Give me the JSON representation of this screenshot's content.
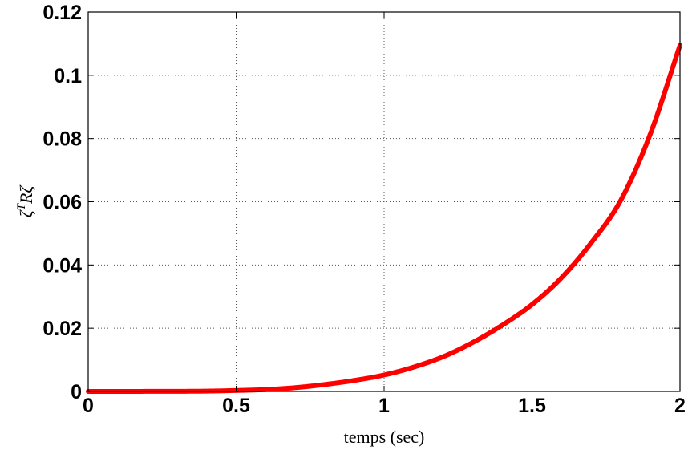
{
  "chart_data": {
    "type": "line",
    "title": "",
    "xlabel": "temps (sec)",
    "ylabel": {
      "base": "ζ",
      "superscript": "T",
      "rest": "Rζ"
    },
    "xlim": [
      0,
      2
    ],
    "ylim": [
      0,
      0.12
    ],
    "xticks": [
      0,
      0.5,
      1,
      1.5,
      2
    ],
    "xtick_labels": [
      "0",
      "0.5",
      "1",
      "1.5",
      "2"
    ],
    "yticks": [
      0,
      0.02,
      0.04,
      0.06,
      0.08,
      0.1,
      0.12
    ],
    "ytick_labels": [
      "0",
      "0.02",
      "0.04",
      "0.06",
      "0.08",
      "0.1",
      "0.12"
    ],
    "grid": true,
    "series": [
      {
        "color": "#ff0000",
        "x": [
          0,
          0.2,
          0.4,
          0.5,
          0.6,
          0.7,
          0.8,
          0.9,
          1.0,
          1.1,
          1.2,
          1.3,
          1.4,
          1.5,
          1.6,
          1.7,
          1.8,
          1.9,
          2.0
        ],
        "y": [
          0,
          2e-05,
          0.0001,
          0.0003,
          0.0006,
          0.0012,
          0.0022,
          0.0035,
          0.0052,
          0.0077,
          0.011,
          0.0155,
          0.021,
          0.0275,
          0.036,
          0.047,
          0.0605,
          0.0815,
          0.1095
        ]
      }
    ]
  }
}
